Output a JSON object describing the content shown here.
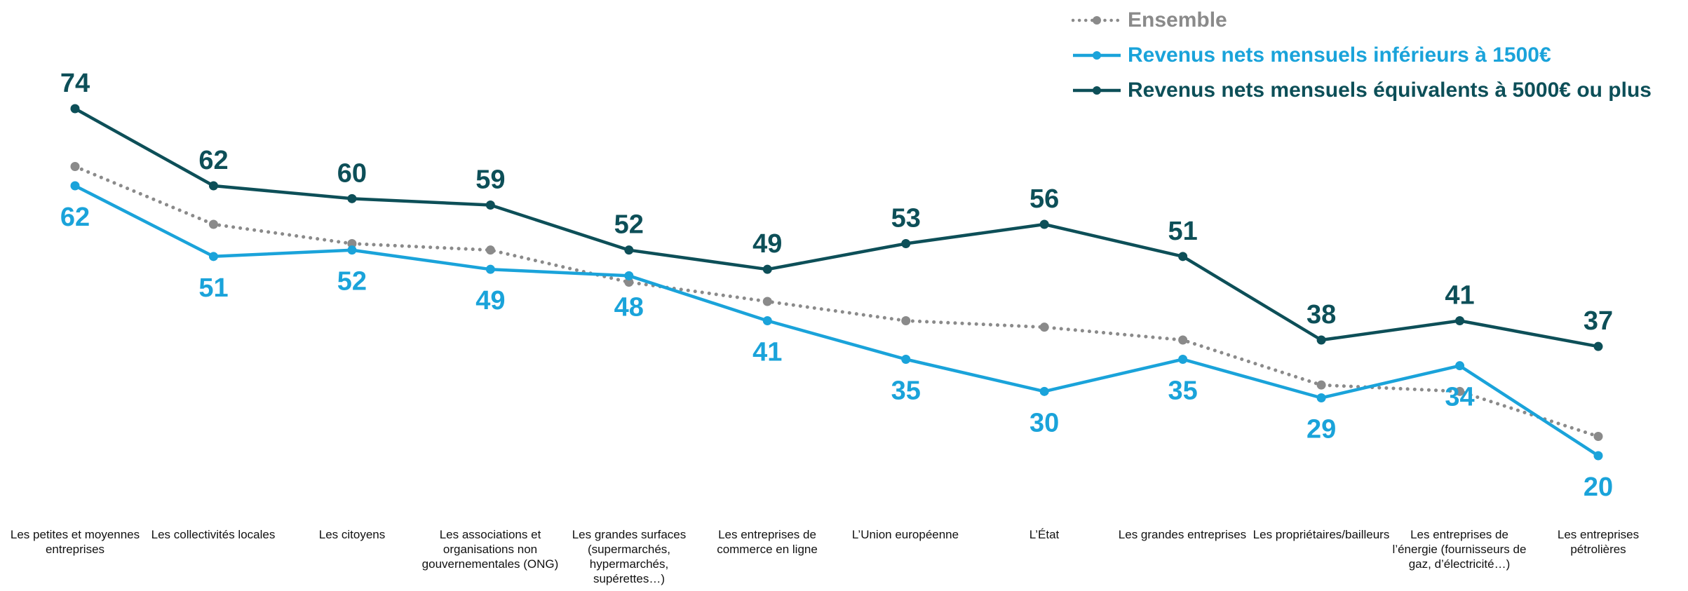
{
  "chart_data": {
    "type": "line",
    "title": "",
    "xlabel": "",
    "ylabel": "",
    "ylim": [
      10,
      80
    ],
    "grid": false,
    "legend_position": "top-right",
    "categories": [
      "Les petites et moyennes entreprises",
      "Les collectivités locales",
      "Les citoyens",
      "Les associations et organisations non gouvernementales (ONG)",
      "Les grandes surfaces (supermarchés, hypermarchés, supérettes…)",
      "Les entreprises de commerce en ligne",
      "L’Union européenne",
      "L’État",
      "Les grandes entreprises",
      "Les propriétaires/bailleurs",
      "Les entreprises de l’énergie (fournisseurs de gaz, d’électricité…)",
      "Les entreprises pétrolières"
    ],
    "series": [
      {
        "name": "Ensemble",
        "color": "#8a8a8a",
        "style": "dotted",
        "labeled": false,
        "values": [
          65,
          56,
          53,
          52,
          47,
          44,
          41,
          40,
          38,
          31,
          30,
          23
        ]
      },
      {
        "name": "Revenus nets mensuels inférieurs à 1500€",
        "color": "#1aa3da",
        "style": "solid",
        "labeled": true,
        "label_position": "below",
        "values": [
          62,
          51,
          52,
          49,
          48,
          41,
          35,
          30,
          35,
          29,
          34,
          20
        ]
      },
      {
        "name": "Revenus nets mensuels équivalents à 5000€ ou plus",
        "color": "#0d4f58",
        "style": "solid",
        "labeled": true,
        "label_position": "above",
        "values": [
          74,
          62,
          60,
          59,
          52,
          49,
          53,
          56,
          51,
          38,
          41,
          37
        ]
      }
    ]
  }
}
